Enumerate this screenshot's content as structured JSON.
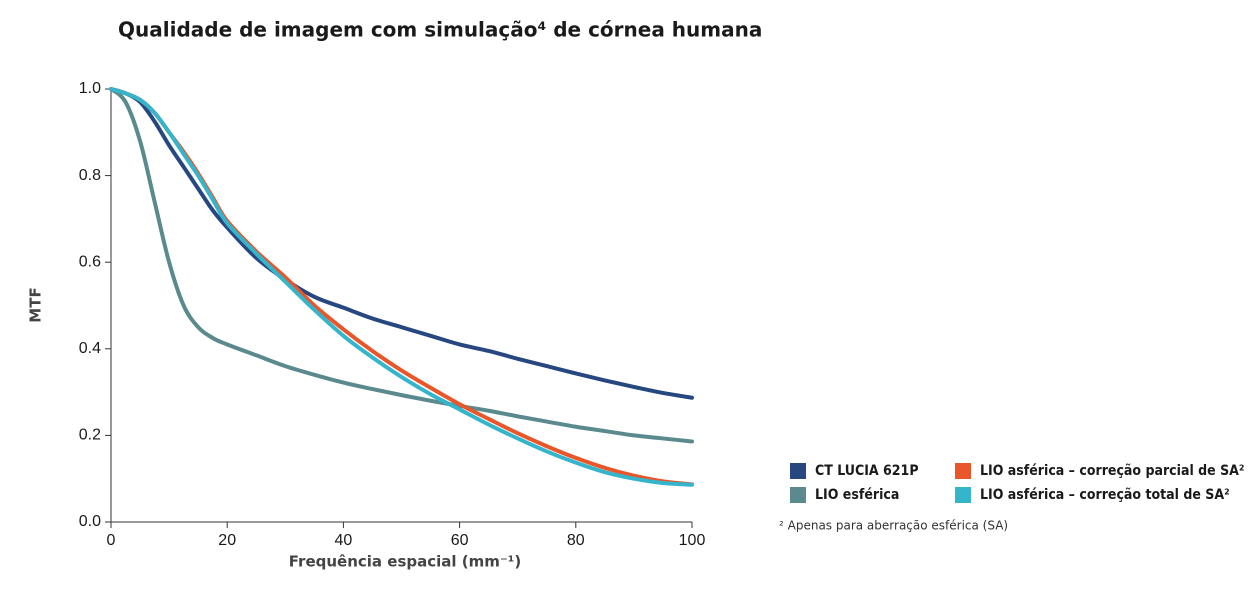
{
  "chart_data": {
    "type": "line",
    "title": "Qualidade de imagem com simulação⁴ de córnea humana",
    "x_label": "Frequência espacial (mm⁻¹)",
    "y_label": "MTF",
    "footnote": "² Apenas para aberração esférica (SA)",
    "x": [
      0,
      2.5,
      5,
      7.5,
      10,
      12.5,
      15,
      17.5,
      20,
      25,
      30,
      35,
      40,
      45,
      50,
      55,
      60,
      65,
      70,
      75,
      80,
      85,
      90,
      95,
      100
    ],
    "series": [
      {
        "name": "CT LUCIA 621P",
        "color": "#26477f",
        "values": [
          1.0,
          0.99,
          0.97,
          0.925,
          0.87,
          0.82,
          0.77,
          0.72,
          0.68,
          0.61,
          0.56,
          0.52,
          0.495,
          0.47,
          0.45,
          0.43,
          0.41,
          0.395,
          0.377,
          0.36,
          0.343,
          0.327,
          0.312,
          0.298,
          0.287
        ]
      },
      {
        "name": "LIO esférica",
        "color": "#5a8a8e",
        "values": [
          1.0,
          0.97,
          0.88,
          0.74,
          0.6,
          0.5,
          0.45,
          0.425,
          0.41,
          0.385,
          0.36,
          0.34,
          0.322,
          0.307,
          0.293,
          0.28,
          0.268,
          0.257,
          0.244,
          0.232,
          0.22,
          0.21,
          0.2,
          0.193,
          0.186
        ]
      },
      {
        "name": "LIO asférica – correção parcial de SA²",
        "color": "#e8562a",
        "values": [
          1.0,
          0.99,
          0.975,
          0.945,
          0.9,
          0.855,
          0.805,
          0.75,
          0.695,
          0.625,
          0.565,
          0.5,
          0.445,
          0.395,
          0.35,
          0.31,
          0.272,
          0.238,
          0.205,
          0.175,
          0.148,
          0.125,
          0.107,
          0.094,
          0.087
        ]
      },
      {
        "name": "LIO asférica – correção total de SA²",
        "color": "#35b5cc",
        "values": [
          1.0,
          0.99,
          0.975,
          0.945,
          0.9,
          0.85,
          0.8,
          0.745,
          0.69,
          0.62,
          0.555,
          0.49,
          0.43,
          0.38,
          0.335,
          0.295,
          0.26,
          0.225,
          0.193,
          0.163,
          0.137,
          0.115,
          0.1,
          0.09,
          0.086
        ]
      }
    ],
    "xlim": [
      0,
      100
    ],
    "xticks": [
      0,
      20,
      40,
      60,
      80,
      100
    ],
    "ylim": [
      0,
      1
    ],
    "yticks": [
      {
        "value": 0,
        "label": "0.0"
      },
      0.2,
      0.4,
      0.6,
      0.8,
      {
        "value": 1,
        "label": "1.0"
      }
    ],
    "grid": false,
    "legend": "lower right"
  }
}
